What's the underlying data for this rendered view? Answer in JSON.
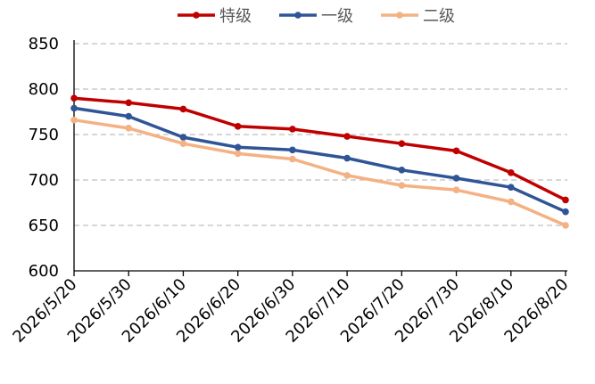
{
  "chart_data": {
    "type": "line",
    "title": "",
    "xlabel": "",
    "ylabel": "",
    "x": [
      "2026/5/20",
      "2026/5/30",
      "2026/6/10",
      "2026/6/20",
      "2026/6/30",
      "2026/7/10",
      "2026/7/20",
      "2026/7/30",
      "2026/8/10",
      "2026/8/20"
    ],
    "ylim": [
      600,
      850
    ],
    "yticks": [
      600,
      650,
      700,
      750,
      800,
      850
    ],
    "grid": true,
    "legend_position": "top",
    "series": [
      {
        "name": "特级",
        "color": "#C00000",
        "values": [
          790,
          785,
          778,
          759,
          756,
          748,
          740,
          732,
          708,
          678
        ]
      },
      {
        "name": "一级",
        "color": "#2F5597",
        "values": [
          779,
          770,
          747,
          736,
          733,
          724,
          711,
          702,
          692,
          665
        ]
      },
      {
        "name": "二级",
        "color": "#F4B183",
        "values": [
          766,
          757,
          740,
          729,
          723,
          705,
          694,
          689,
          676,
          650
        ]
      }
    ]
  }
}
